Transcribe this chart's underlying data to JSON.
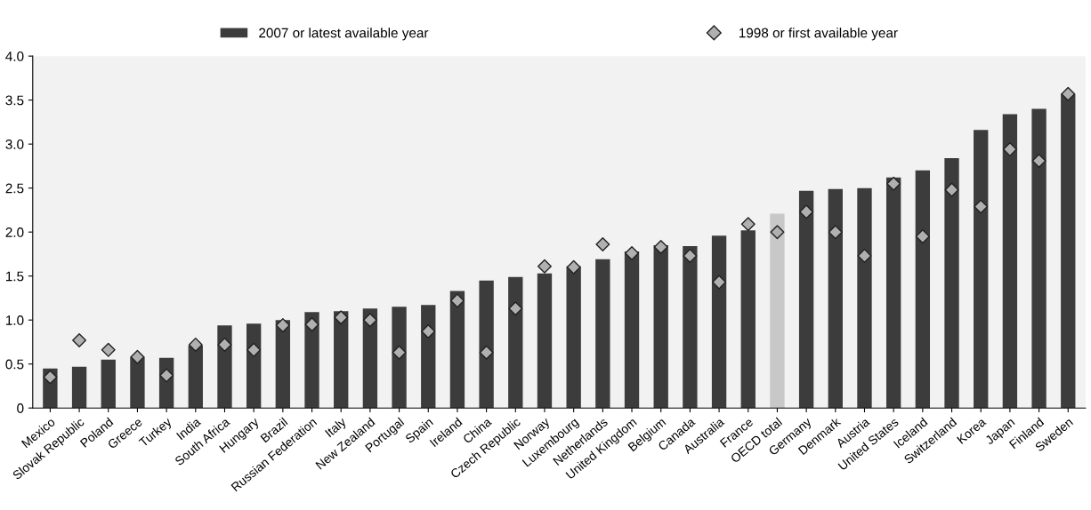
{
  "chart_data": {
    "type": "bar",
    "categories": [
      "Mexico",
      "Slovak Republic",
      "Poland",
      "Greece",
      "Turkey",
      "India",
      "South Africa",
      "Hungary",
      "Brazil",
      "Russian Federation",
      "Italy",
      "New Zealand",
      "Portugal",
      "Spain",
      "Ireland",
      "China",
      "Czech Republic",
      "Norway",
      "Luxembourg",
      "Netherlands",
      "United Kingdom",
      "Belgium",
      "Canada",
      "Australia",
      "France",
      "OECD total",
      "Germany",
      "Denmark",
      "Austria",
      "United States",
      "Iceland",
      "Switzerland",
      "Korea",
      "Japan",
      "Finland",
      "Sweden"
    ],
    "series": [
      {
        "name": "2007 or latest available year",
        "color": "#3c3c3c",
        "colors": [
          "#3c3c3c",
          "#3c3c3c",
          "#3c3c3c",
          "#3c3c3c",
          "#3c3c3c",
          "#3c3c3c",
          "#3c3c3c",
          "#3c3c3c",
          "#3c3c3c",
          "#3c3c3c",
          "#3c3c3c",
          "#3c3c3c",
          "#3c3c3c",
          "#3c3c3c",
          "#3c3c3c",
          "#3c3c3c",
          "#3c3c3c",
          "#3c3c3c",
          "#3c3c3c",
          "#3c3c3c",
          "#3c3c3c",
          "#3c3c3c",
          "#3c3c3c",
          "#3c3c3c",
          "#3c3c3c",
          "#c8c8c8",
          "#3c3c3c",
          "#3c3c3c",
          "#3c3c3c",
          "#3c3c3c",
          "#3c3c3c",
          "#3c3c3c",
          "#3c3c3c",
          "#3c3c3c",
          "#3c3c3c",
          "#3c3c3c"
        ],
        "values": [
          0.45,
          0.47,
          0.55,
          0.58,
          0.57,
          0.71,
          0.94,
          0.96,
          1.0,
          1.09,
          1.1,
          1.13,
          1.15,
          1.17,
          1.33,
          1.45,
          1.49,
          1.53,
          1.61,
          1.69,
          1.78,
          1.85,
          1.84,
          1.96,
          2.02,
          2.21,
          2.47,
          2.49,
          2.5,
          2.62,
          2.7,
          2.84,
          3.16,
          3.34,
          3.4,
          3.57
        ]
      },
      {
        "name": "1998 or first available year",
        "type": "scatter",
        "color": "#b0b0b0",
        "marker": "diamond",
        "values": [
          0.35,
          0.77,
          0.66,
          0.58,
          0.37,
          0.72,
          0.72,
          0.66,
          0.94,
          0.95,
          1.03,
          1.0,
          0.63,
          0.87,
          1.22,
          0.63,
          1.13,
          1.61,
          1.6,
          1.86,
          1.76,
          1.83,
          1.73,
          1.43,
          2.09,
          2.0,
          2.23,
          2.0,
          1.73,
          2.55,
          1.95,
          2.48,
          2.29,
          2.94,
          2.81,
          3.57
        ]
      }
    ],
    "ylim": [
      0,
      4.0
    ],
    "yticks": [
      {
        "value": 0,
        "label": "0"
      },
      {
        "value": 0.5,
        "label": "0.5"
      },
      {
        "value": 1.0,
        "label": "1.0"
      },
      {
        "value": 1.5,
        "label": "1.5"
      },
      {
        "value": 2.0,
        "label": "2.0"
      },
      {
        "value": 2.5,
        "label": "2.5"
      },
      {
        "value": 3.0,
        "label": "3.0"
      },
      {
        "value": 3.5,
        "label": "3.5"
      },
      {
        "value": 4.0,
        "label": "4.0"
      }
    ],
    "legend": "top",
    "grid": false
  }
}
